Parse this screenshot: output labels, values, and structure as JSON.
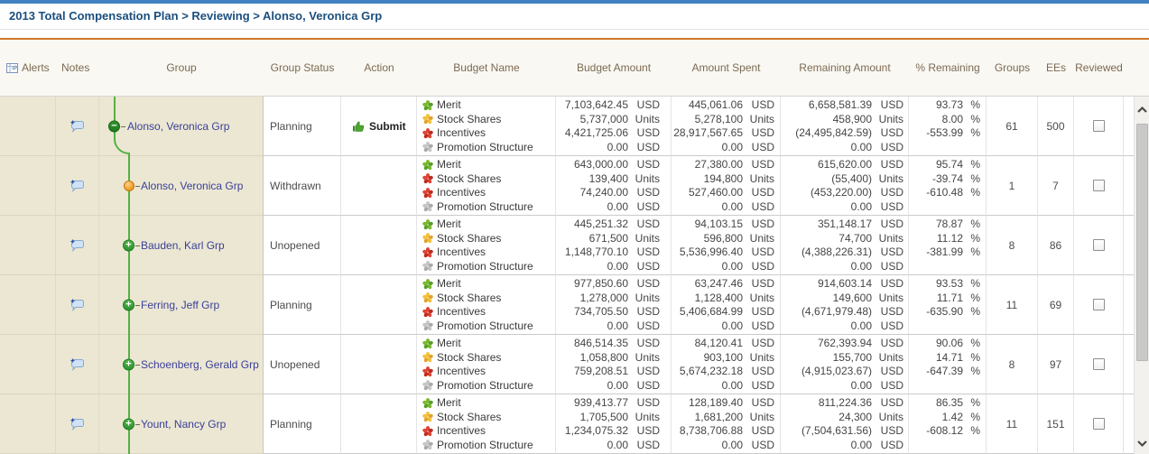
{
  "breadcrumb": "2013 Total Compensation Plan > Reviewing > Alonso, Veronica Grp",
  "header": {
    "alerts": "Alerts",
    "notes": "Notes",
    "group": "Group",
    "group_status": "Group Status",
    "action": "Action",
    "budget_name": "Budget Name",
    "budget_amount": "Budget Amount",
    "amount_spent": "Amount Spent",
    "remaining_amount": "Remaining Amount",
    "pct_remaining": "% Remaining",
    "groups": "Groups",
    "ees": "EEs",
    "reviewed": "Reviewed"
  },
  "colors": {
    "topbar_blue": "#4181c2",
    "accent_orange": "#d2752b",
    "tree_green": "#54b244",
    "group_link": "#3a4097",
    "header_text": "#7c6a52",
    "left_pane_beige": "#ece7d3"
  },
  "icon_palette": {
    "green": [
      "#7cb82f",
      "#54a02a"
    ],
    "yellow": [
      "#f2c23d",
      "#e3a32b"
    ],
    "red": [
      "#dc4535",
      "#c02a1f"
    ],
    "gray": [
      "#c6c6c6",
      "#aaaaaa"
    ]
  },
  "rows": [
    {
      "group": "Alonso, Veronica Grp",
      "node": "collapse",
      "indent": 0,
      "status": "Planning",
      "action": "Submit",
      "groups": "61",
      "ees": "500",
      "reviewed": false,
      "budgets": [
        {
          "name": "Merit",
          "icon": "green",
          "budget": "7,103,642.45",
          "budget_unit": "USD",
          "spent": "445,061.06",
          "spent_unit": "USD",
          "remaining": "6,658,581.39",
          "remaining_unit": "USD",
          "pct": "93.73",
          "pct_unit": "%"
        },
        {
          "name": "Stock Shares",
          "icon": "yellow",
          "budget": "5,737,000",
          "budget_unit": "Units",
          "spent": "5,278,100",
          "spent_unit": "Units",
          "remaining": "458,900",
          "remaining_unit": "Units",
          "pct": "8.00",
          "pct_unit": "%"
        },
        {
          "name": "Incentives",
          "icon": "red",
          "budget": "4,421,725.06",
          "budget_unit": "USD",
          "spent": "28,917,567.65",
          "spent_unit": "USD",
          "remaining": "(24,495,842.59)",
          "remaining_unit": "USD",
          "pct": "-553.99",
          "pct_unit": "%"
        },
        {
          "name": "Promotion Structure",
          "icon": "gray",
          "budget": "0.00",
          "budget_unit": "USD",
          "spent": "0.00",
          "spent_unit": "USD",
          "remaining": "0.00",
          "remaining_unit": "USD",
          "pct": "",
          "pct_unit": ""
        }
      ]
    },
    {
      "group": "Alonso, Veronica Grp",
      "node": "ball",
      "indent": 1,
      "status": "Withdrawn",
      "action": "",
      "groups": "1",
      "ees": "7",
      "reviewed": false,
      "budgets": [
        {
          "name": "Merit",
          "icon": "green",
          "budget": "643,000.00",
          "budget_unit": "USD",
          "spent": "27,380.00",
          "spent_unit": "USD",
          "remaining": "615,620.00",
          "remaining_unit": "USD",
          "pct": "95.74",
          "pct_unit": "%"
        },
        {
          "name": "Stock Shares",
          "icon": "red",
          "budget": "139,400",
          "budget_unit": "Units",
          "spent": "194,800",
          "spent_unit": "Units",
          "remaining": "(55,400)",
          "remaining_unit": "Units",
          "pct": "-39.74",
          "pct_unit": "%"
        },
        {
          "name": "Incentives",
          "icon": "red",
          "budget": "74,240.00",
          "budget_unit": "USD",
          "spent": "527,460.00",
          "spent_unit": "USD",
          "remaining": "(453,220.00)",
          "remaining_unit": "USD",
          "pct": "-610.48",
          "pct_unit": "%"
        },
        {
          "name": "Promotion Structure",
          "icon": "gray",
          "budget": "0.00",
          "budget_unit": "USD",
          "spent": "0.00",
          "spent_unit": "USD",
          "remaining": "0.00",
          "remaining_unit": "USD",
          "pct": "",
          "pct_unit": ""
        }
      ]
    },
    {
      "group": "Bauden, Karl Grp",
      "node": "expand",
      "indent": 1,
      "status": "Unopened",
      "action": "",
      "groups": "8",
      "ees": "86",
      "reviewed": false,
      "budgets": [
        {
          "name": "Merit",
          "icon": "green",
          "budget": "445,251.32",
          "budget_unit": "USD",
          "spent": "94,103.15",
          "spent_unit": "USD",
          "remaining": "351,148.17",
          "remaining_unit": "USD",
          "pct": "78.87",
          "pct_unit": "%"
        },
        {
          "name": "Stock Shares",
          "icon": "yellow",
          "budget": "671,500",
          "budget_unit": "Units",
          "spent": "596,800",
          "spent_unit": "Units",
          "remaining": "74,700",
          "remaining_unit": "Units",
          "pct": "11.12",
          "pct_unit": "%"
        },
        {
          "name": "Incentives",
          "icon": "red",
          "budget": "1,148,770.10",
          "budget_unit": "USD",
          "spent": "5,536,996.40",
          "spent_unit": "USD",
          "remaining": "(4,388,226.31)",
          "remaining_unit": "USD",
          "pct": "-381.99",
          "pct_unit": "%"
        },
        {
          "name": "Promotion Structure",
          "icon": "gray",
          "budget": "0.00",
          "budget_unit": "USD",
          "spent": "0.00",
          "spent_unit": "USD",
          "remaining": "0.00",
          "remaining_unit": "USD",
          "pct": "",
          "pct_unit": ""
        }
      ]
    },
    {
      "group": "Ferring, Jeff Grp",
      "node": "expand",
      "indent": 1,
      "status": "Planning",
      "action": "",
      "groups": "11",
      "ees": "69",
      "reviewed": false,
      "budgets": [
        {
          "name": "Merit",
          "icon": "green",
          "budget": "977,850.60",
          "budget_unit": "USD",
          "spent": "63,247.46",
          "spent_unit": "USD",
          "remaining": "914,603.14",
          "remaining_unit": "USD",
          "pct": "93.53",
          "pct_unit": "%"
        },
        {
          "name": "Stock Shares",
          "icon": "yellow",
          "budget": "1,278,000",
          "budget_unit": "Units",
          "spent": "1,128,400",
          "spent_unit": "Units",
          "remaining": "149,600",
          "remaining_unit": "Units",
          "pct": "11.71",
          "pct_unit": "%"
        },
        {
          "name": "Incentives",
          "icon": "red",
          "budget": "734,705.50",
          "budget_unit": "USD",
          "spent": "5,406,684.99",
          "spent_unit": "USD",
          "remaining": "(4,671,979.48)",
          "remaining_unit": "USD",
          "pct": "-635.90",
          "pct_unit": "%"
        },
        {
          "name": "Promotion Structure",
          "icon": "gray",
          "budget": "0.00",
          "budget_unit": "USD",
          "spent": "0.00",
          "spent_unit": "USD",
          "remaining": "0.00",
          "remaining_unit": "USD",
          "pct": "",
          "pct_unit": ""
        }
      ]
    },
    {
      "group": "Schoenberg, Gerald Grp",
      "node": "expand",
      "indent": 1,
      "status": "Unopened",
      "action": "",
      "groups": "8",
      "ees": "97",
      "reviewed": false,
      "budgets": [
        {
          "name": "Merit",
          "icon": "green",
          "budget": "846,514.35",
          "budget_unit": "USD",
          "spent": "84,120.41",
          "spent_unit": "USD",
          "remaining": "762,393.94",
          "remaining_unit": "USD",
          "pct": "90.06",
          "pct_unit": "%"
        },
        {
          "name": "Stock Shares",
          "icon": "yellow",
          "budget": "1,058,800",
          "budget_unit": "Units",
          "spent": "903,100",
          "spent_unit": "Units",
          "remaining": "155,700",
          "remaining_unit": "Units",
          "pct": "14.71",
          "pct_unit": "%"
        },
        {
          "name": "Incentives",
          "icon": "red",
          "budget": "759,208.51",
          "budget_unit": "USD",
          "spent": "5,674,232.18",
          "spent_unit": "USD",
          "remaining": "(4,915,023.67)",
          "remaining_unit": "USD",
          "pct": "-647.39",
          "pct_unit": "%"
        },
        {
          "name": "Promotion Structure",
          "icon": "gray",
          "budget": "0.00",
          "budget_unit": "USD",
          "spent": "0.00",
          "spent_unit": "USD",
          "remaining": "0.00",
          "remaining_unit": "USD",
          "pct": "",
          "pct_unit": ""
        }
      ]
    },
    {
      "group": "Yount, Nancy Grp",
      "node": "expand",
      "indent": 1,
      "status": "Planning",
      "action": "",
      "groups": "11",
      "ees": "151",
      "reviewed": false,
      "budgets": [
        {
          "name": "Merit",
          "icon": "green",
          "budget": "939,413.77",
          "budget_unit": "USD",
          "spent": "128,189.40",
          "spent_unit": "USD",
          "remaining": "811,224.36",
          "remaining_unit": "USD",
          "pct": "86.35",
          "pct_unit": "%"
        },
        {
          "name": "Stock Shares",
          "icon": "yellow",
          "budget": "1,705,500",
          "budget_unit": "Units",
          "spent": "1,681,200",
          "spent_unit": "Units",
          "remaining": "24,300",
          "remaining_unit": "Units",
          "pct": "1.42",
          "pct_unit": "%"
        },
        {
          "name": "Incentives",
          "icon": "red",
          "budget": "1,234,075.32",
          "budget_unit": "USD",
          "spent": "8,738,706.88",
          "spent_unit": "USD",
          "remaining": "(7,504,631.56)",
          "remaining_unit": "USD",
          "pct": "-608.12",
          "pct_unit": "%"
        },
        {
          "name": "Promotion Structure",
          "icon": "gray",
          "budget": "0.00",
          "budget_unit": "USD",
          "spent": "0.00",
          "spent_unit": "USD",
          "remaining": "0.00",
          "remaining_unit": "USD",
          "pct": "",
          "pct_unit": ""
        }
      ]
    }
  ]
}
